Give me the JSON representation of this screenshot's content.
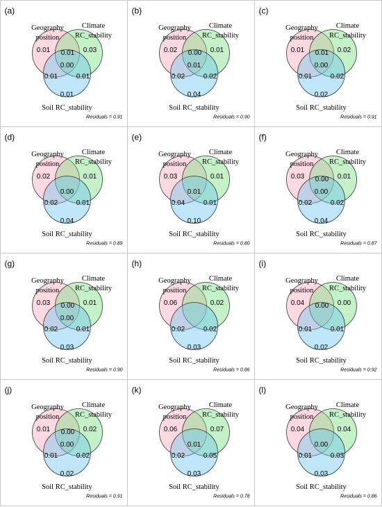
{
  "set_labels": {
    "geography": [
      "Geography",
      "position"
    ],
    "climate": [
      "Climate",
      "RC_stability"
    ],
    "soil": "Soil RC_stability"
  },
  "panels": [
    {
      "label": "(a)",
      "regions": {
        "geo": "0.01",
        "clim": "0.03",
        "geo_clim": "0.01",
        "all": "0.00",
        "geo_soil": "0.01",
        "clim_soil": "0.01",
        "soil": "0.01"
      },
      "residuals": "Residuals = 0.91"
    },
    {
      "label": "(b)",
      "regions": {
        "geo": "0.02",
        "clim": "0.01",
        "geo_clim": "0.00",
        "all": "0.01",
        "geo_soil": "0.02",
        "clim_soil": "0.02",
        "soil": "0.04"
      },
      "residuals": "Residuals = 0.90"
    },
    {
      "label": "(c)",
      "regions": {
        "geo": "0.01",
        "clim": "0.02",
        "geo_clim": "0.01",
        "all": "0.00",
        "geo_soil": "0.01",
        "clim_soil": "0.02",
        "soil": "0.02"
      },
      "residuals": "Residuals = 0.91"
    },
    {
      "label": "(d)",
      "regions": {
        "geo": "0.02",
        "clim": "0.01",
        "all": "0.00",
        "geo_soil": "0.02",
        "clim_soil": "0.01",
        "soil": "0.04"
      },
      "residuals": "Residuals = 0.89"
    },
    {
      "label": "(e)",
      "regions": {
        "geo": "0.03",
        "clim": "0.01",
        "all": "0.01",
        "geo_soil": "0.04",
        "clim_soil": "0.01",
        "soil": "0.10"
      },
      "residuals": "Residuals = 0.80"
    },
    {
      "label": "(f)",
      "regions": {
        "geo": "0.03",
        "clim": "0.01",
        "geo_clim": "0.00",
        "all": "0.00",
        "geo_soil": "0.02",
        "clim_soil": "0.02",
        "soil": "0.04"
      },
      "residuals": "Residuals = 0.87"
    },
    {
      "label": "(g)",
      "regions": {
        "geo": "0.03",
        "clim": "0.01",
        "geo_clim": "0.00",
        "all": "0.00",
        "geo_soil": "0.02",
        "clim_soil": "0.01",
        "soil": "0.03"
      },
      "residuals": "Residuals = 0.90"
    },
    {
      "label": "(h)",
      "regions": {
        "geo": "0.06",
        "clim": "0.02",
        "geo_soil": "0.02",
        "clim_soil": "0.02",
        "soil": "0.03"
      },
      "residuals": "Residuals = 0.86"
    },
    {
      "label": "(i)",
      "regions": {
        "geo": "0.04",
        "clim": "0.00",
        "geo_clim": "0.00",
        "geo_soil": "0.01",
        "clim_soil": "0.01",
        "soil": "0.02"
      },
      "residuals": "Residuals = 0.92"
    },
    {
      "label": "(j)",
      "regions": {
        "geo": "0.01",
        "clim": "0.02",
        "geo_clim": "0.00",
        "all": "0.00",
        "geo_soil": "0.01",
        "clim_soil": "0.02",
        "soil": "0.02"
      },
      "residuals": "Residuals = 0.91"
    },
    {
      "label": "(k)",
      "regions": {
        "geo": "0.06",
        "clim": "0.07",
        "all": "0.01",
        "geo_soil": "0.02",
        "clim_soil": "0.05",
        "soil": "0.03"
      },
      "residuals": "Residuals = 0.78"
    },
    {
      "label": "(l)",
      "regions": {
        "geo": "0.04",
        "clim": "0.04",
        "all": "0.00",
        "geo_soil": "0.01",
        "clim_soil": "0.03",
        "soil": "0.03"
      },
      "residuals": "Residuals = 0.86"
    }
  ]
}
